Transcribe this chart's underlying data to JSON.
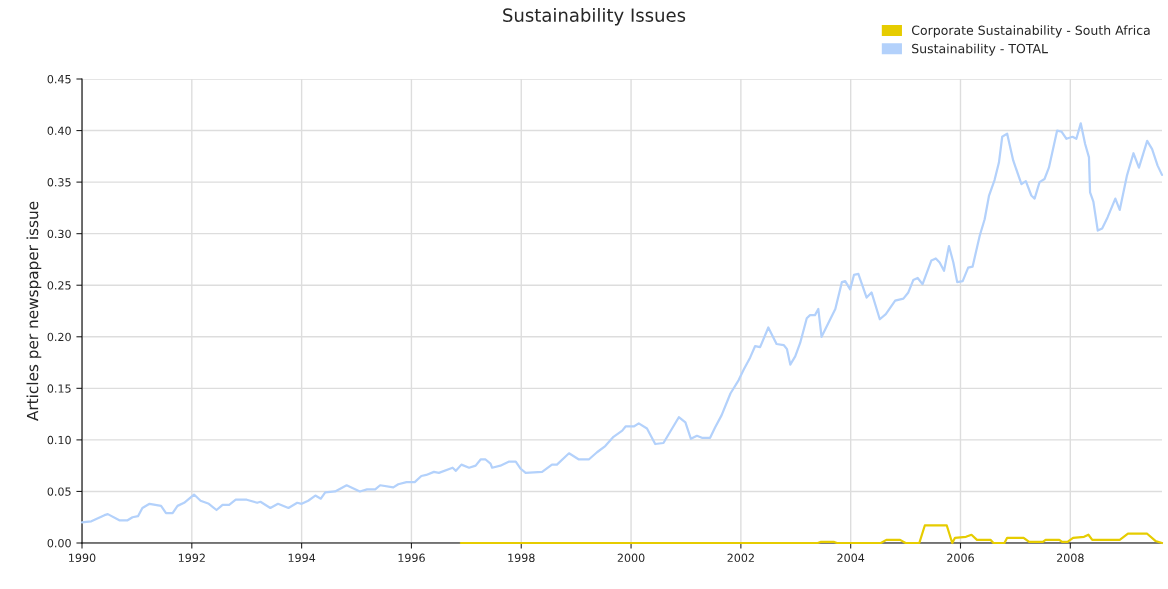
{
  "chart_data": {
    "type": "line",
    "title": "Sustainability Issues",
    "ylabel": "Articles per newspaper issue",
    "xlim": [
      1990,
      2009.67
    ],
    "xticks": [
      1990,
      1992,
      1994,
      1996,
      1998,
      2000,
      2002,
      2004,
      2006,
      2008
    ],
    "ylim": [
      0,
      0.45
    ],
    "yticks": [
      {
        "value": 0,
        "label": "0.00"
      },
      {
        "value": 0.05,
        "label": "0.05"
      },
      {
        "value": 0.1,
        "label": "0.10"
      },
      {
        "value": 0.15,
        "label": "0.15"
      },
      {
        "value": 0.2,
        "label": "0.20"
      },
      {
        "value": 0.25,
        "label": "0.25"
      },
      {
        "value": 0.3,
        "label": "0.30"
      },
      {
        "value": 0.35,
        "label": "0.35"
      },
      {
        "value": 0.4,
        "label": "0.40"
      },
      {
        "value": 0.45,
        "label": "0.45"
      }
    ],
    "grid": true,
    "legend": "top right",
    "marker": "none",
    "line_style": "solid",
    "series": [
      {
        "name": "Corporate Sustainability - South Africa",
        "color": "#e6cc00",
        "x": [
          1996.9,
          2003.4,
          2003.45,
          2003.7,
          2003.75,
          2004.55,
          2004.65,
          2004.9,
          2005.0,
          2005.25,
          2005.35,
          2005.75,
          2005.85,
          2005.9,
          2006.1,
          2006.2,
          2006.3,
          2006.55,
          2006.6,
          2006.8,
          2006.85,
          2007.15,
          2007.25,
          2007.5,
          2007.55,
          2007.8,
          2007.85,
          2007.95,
          2008.05,
          2008.25,
          2008.33,
          2008.4,
          2008.9,
          2009.05,
          2009.4,
          2009.55,
          2009.67
        ],
        "values": [
          0,
          0,
          0.001,
          0.001,
          0,
          0,
          0.003,
          0.003,
          0,
          0,
          0.017,
          0.017,
          0,
          0.005,
          0.006,
          0.008,
          0.003,
          0.003,
          0,
          0,
          0.005,
          0.005,
          0.001,
          0.001,
          0.003,
          0.003,
          0.001,
          0.001,
          0.005,
          0.006,
          0.008,
          0.003,
          0.003,
          0.009,
          0.009,
          0.002,
          0
        ]
      },
      {
        "name": "Sustainability - TOTAL",
        "color": "#b3d1fb",
        "x": [
          1990.0,
          1990.17,
          1990.41,
          1990.47,
          1990.68,
          1990.83,
          1990.92,
          1991.02,
          1991.1,
          1991.23,
          1991.44,
          1991.53,
          1991.65,
          1991.74,
          1991.86,
          1992.04,
          1992.16,
          1992.31,
          1992.45,
          1992.56,
          1992.68,
          1992.8,
          1992.92,
          1993.0,
          1993.19,
          1993.25,
          1993.43,
          1993.57,
          1993.76,
          1993.92,
          1994.0,
          1994.12,
          1994.25,
          1994.35,
          1994.43,
          1994.61,
          1994.82,
          1995.06,
          1995.19,
          1995.34,
          1995.43,
          1995.67,
          1995.76,
          1995.91,
          1996.06,
          1996.18,
          1996.27,
          1996.41,
          1996.5,
          1996.75,
          1996.81,
          1996.91,
          1997.05,
          1997.17,
          1997.26,
          1997.35,
          1997.44,
          1997.47,
          1997.62,
          1997.78,
          1997.9,
          1997.99,
          1998.08,
          1998.38,
          1998.56,
          1998.65,
          1998.87,
          1999.05,
          1999.23,
          1999.38,
          1999.53,
          1999.68,
          1999.84,
          1999.9,
          2000.05,
          2000.14,
          2000.29,
          2000.44,
          2000.59,
          2000.87,
          2000.99,
          2001.09,
          2001.2,
          2001.29,
          2001.44,
          2001.53,
          2001.65,
          2001.81,
          2001.96,
          2002.05,
          2002.17,
          2002.26,
          2002.35,
          2002.5,
          2002.65,
          2002.78,
          2002.84,
          2002.9,
          2002.99,
          2003.08,
          2003.2,
          2003.26,
          2003.35,
          2003.41,
          2003.47,
          2003.72,
          2003.84,
          2003.9,
          2003.99,
          2004.06,
          2004.14,
          2004.29,
          2004.38,
          2004.53,
          2004.64,
          2004.81,
          2004.96,
          2005.05,
          2005.14,
          2005.22,
          2005.31,
          2005.47,
          2005.55,
          2005.62,
          2005.7,
          2005.79,
          2005.87,
          2005.94,
          2006.04,
          2006.14,
          2006.22,
          2006.35,
          2006.44,
          2006.52,
          2006.62,
          2006.7,
          2006.76,
          2006.85,
          2006.96,
          2007.11,
          2007.19,
          2007.29,
          2007.35,
          2007.44,
          2007.53,
          2007.61,
          2007.76,
          2007.84,
          2007.93,
          2008.04,
          2008.11,
          2008.19,
          2008.27,
          2008.34,
          2008.36,
          2008.42,
          2008.5,
          2008.58,
          2008.68,
          2008.82,
          2008.9,
          2009.03,
          2009.15,
          2009.25,
          2009.4,
          2009.49,
          2009.59,
          2009.67
        ],
        "values": [
          0.02,
          0.021,
          0.027,
          0.028,
          0.022,
          0.022,
          0.025,
          0.026,
          0.034,
          0.038,
          0.036,
          0.029,
          0.029,
          0.036,
          0.039,
          0.047,
          0.041,
          0.038,
          0.032,
          0.037,
          0.037,
          0.042,
          0.042,
          0.042,
          0.039,
          0.04,
          0.034,
          0.038,
          0.034,
          0.039,
          0.038,
          0.041,
          0.046,
          0.043,
          0.049,
          0.05,
          0.056,
          0.05,
          0.052,
          0.052,
          0.056,
          0.054,
          0.057,
          0.059,
          0.059,
          0.065,
          0.066,
          0.069,
          0.068,
          0.073,
          0.07,
          0.076,
          0.073,
          0.075,
          0.081,
          0.081,
          0.077,
          0.073,
          0.075,
          0.079,
          0.079,
          0.072,
          0.068,
          0.069,
          0.076,
          0.076,
          0.087,
          0.081,
          0.081,
          0.088,
          0.094,
          0.103,
          0.109,
          0.113,
          0.113,
          0.116,
          0.111,
          0.096,
          0.097,
          0.122,
          0.117,
          0.101,
          0.104,
          0.102,
          0.102,
          0.112,
          0.124,
          0.145,
          0.158,
          0.168,
          0.18,
          0.191,
          0.19,
          0.209,
          0.193,
          0.192,
          0.188,
          0.173,
          0.181,
          0.194,
          0.218,
          0.221,
          0.221,
          0.227,
          0.2,
          0.227,
          0.253,
          0.254,
          0.246,
          0.26,
          0.261,
          0.238,
          0.243,
          0.217,
          0.222,
          0.235,
          0.237,
          0.243,
          0.255,
          0.257,
          0.251,
          0.274,
          0.276,
          0.272,
          0.264,
          0.288,
          0.272,
          0.253,
          0.254,
          0.267,
          0.268,
          0.298,
          0.314,
          0.337,
          0.352,
          0.369,
          0.394,
          0.397,
          0.371,
          0.348,
          0.351,
          0.337,
          0.334,
          0.35,
          0.353,
          0.364,
          0.4,
          0.399,
          0.392,
          0.394,
          0.392,
          0.407,
          0.387,
          0.374,
          0.34,
          0.331,
          0.303,
          0.305,
          0.316,
          0.334,
          0.323,
          0.356,
          0.378,
          0.364,
          0.39,
          0.382,
          0.366,
          0.357
        ]
      }
    ]
  }
}
